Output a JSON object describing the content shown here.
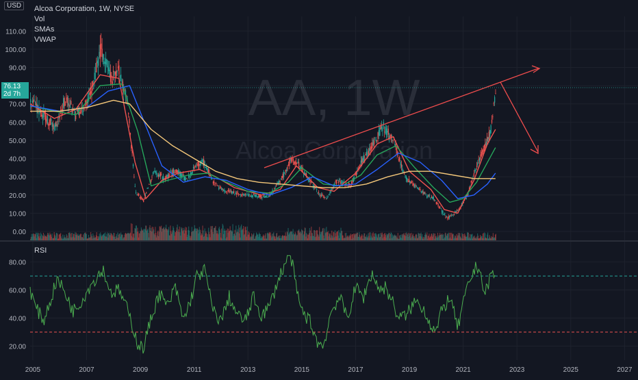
{
  "legend": {
    "title": "Alcoa Corporation, 1W, NYSE",
    "items": [
      "Vol",
      "SMAs",
      "VWAP"
    ]
  },
  "rsi_label": "RSI",
  "currency": "USD",
  "last_price": "76.13",
  "countdown": "2d 7h",
  "watermark": {
    "symbol": "AA, 1W",
    "name": "Alcoa Corporation"
  },
  "colors": {
    "background": "#131722",
    "up": "#26a69a",
    "down": "#ef5350",
    "rsi_line": "#4caf50",
    "sma_fast": "#ef5350",
    "sma_mid": "#26a65b",
    "sma_slow": "#2962ff",
    "vwap": "#f5c87a",
    "trendline": "#f04d4d"
  },
  "chart_data": [
    {
      "type": "line",
      "title": "Alcoa Corporation, 1W, NYSE",
      "x_labels": [
        "2005",
        "2007",
        "2009",
        "2011",
        "2013",
        "2015",
        "2017",
        "2019",
        "2021",
        "2023",
        "2025",
        "2027"
      ],
      "xlim": [
        2004.9,
        2027.5
      ],
      "ylim": [
        -3,
        118
      ],
      "y_ticks": [
        0.0,
        10.0,
        20.0,
        30.0,
        40.0,
        50.0,
        60.0,
        70.0,
        80.0,
        90.0,
        100.0,
        110.0
      ],
      "y_tick_labels": [
        "0.00",
        "10.00",
        "20.00",
        "30.00",
        "40.00",
        "50.00",
        "60.00",
        "70.00",
        "80.00",
        "90.00",
        "100.00",
        "110.00"
      ],
      "series": [
        {
          "name": "Price",
          "x": [
            2004.9,
            2005.3,
            2005.8,
            2006.2,
            2006.6,
            2006.9,
            2007.2,
            2007.5,
            2007.9,
            2008.2,
            2008.5,
            2008.8,
            2009.1,
            2009.5,
            2009.9,
            2010.3,
            2010.7,
            2011.0,
            2011.3,
            2011.7,
            2012.0,
            2012.5,
            2013.0,
            2013.5,
            2013.8,
            2014.2,
            2014.6,
            2014.9,
            2015.2,
            2015.6,
            2015.9,
            2016.3,
            2016.8,
            2017.2,
            2017.6,
            2018.0,
            2018.4,
            2018.8,
            2019.2,
            2019.6,
            2019.9,
            2020.2,
            2020.4,
            2020.8,
            2021.1,
            2021.4,
            2021.8,
            2022.0,
            2022.2
          ],
          "y": [
            72,
            65,
            57,
            73,
            64,
            68,
            78,
            100,
            83,
            88,
            72,
            22,
            17,
            33,
            29,
            34,
            28,
            35,
            39,
            27,
            23,
            21,
            20,
            19,
            20,
            28,
            40,
            36,
            30,
            21,
            18,
            28,
            25,
            38,
            47,
            58,
            50,
            30,
            25,
            20,
            18,
            11,
            7,
            12,
            18,
            32,
            47,
            55,
            76
          ]
        },
        {
          "name": "SMA fast",
          "x": [
            2004.9,
            2005.8,
            2006.6,
            2007.5,
            2008.2,
            2008.8,
            2009.2,
            2009.8,
            2010.4,
            2011.2,
            2011.8,
            2012.5,
            2013.5,
            2014.2,
            2014.8,
            2015.6,
            2016.2,
            2017.0,
            2017.8,
            2018.4,
            2019.0,
            2019.8,
            2020.3,
            2020.8,
            2021.4,
            2021.9,
            2022.2
          ],
          "y": [
            70,
            62,
            67,
            86,
            84,
            38,
            18,
            28,
            32,
            34,
            30,
            24,
            20,
            23,
            36,
            24,
            22,
            32,
            48,
            52,
            33,
            23,
            12,
            10,
            28,
            48,
            56
          ]
        },
        {
          "name": "SMA mid",
          "x": [
            2004.9,
            2005.8,
            2006.6,
            2007.5,
            2008.3,
            2008.9,
            2009.4,
            2010.0,
            2010.8,
            2011.5,
            2012.2,
            2013.0,
            2013.8,
            2014.5,
            2015.0,
            2015.8,
            2016.5,
            2017.2,
            2017.8,
            2018.5,
            2019.2,
            2019.9,
            2020.5,
            2021.0,
            2021.5,
            2022.2
          ],
          "y": [
            69,
            66,
            64,
            80,
            81,
            55,
            25,
            28,
            31,
            32,
            27,
            22,
            21,
            27,
            35,
            26,
            25,
            31,
            42,
            47,
            35,
            24,
            16,
            18,
            27,
            46
          ]
        },
        {
          "name": "SMA slow",
          "x": [
            2004.9,
            2006.0,
            2007.0,
            2007.8,
            2008.6,
            2009.2,
            2009.8,
            2010.6,
            2011.4,
            2012.2,
            2013.0,
            2013.8,
            2014.6,
            2015.4,
            2016.2,
            2017.0,
            2017.8,
            2018.6,
            2019.4,
            2020.2,
            2020.8,
            2021.4,
            2021.9,
            2022.2
          ],
          "y": [
            69,
            66,
            68,
            77,
            80,
            58,
            36,
            27,
            30,
            28,
            23,
            20,
            24,
            30,
            25,
            26,
            34,
            43,
            38,
            28,
            18,
            20,
            26,
            32
          ]
        },
        {
          "name": "VWAP",
          "x": [
            2004.9,
            2006.0,
            2007.0,
            2008.0,
            2008.6,
            2009.4,
            2010.2,
            2011.0,
            2011.8,
            2012.6,
            2013.4,
            2014.2,
            2015.0,
            2015.8,
            2016.6,
            2017.4,
            2018.2,
            2019.0,
            2019.8,
            2020.6,
            2021.4,
            2022.2
          ],
          "y": [
            66,
            66,
            68,
            72,
            70,
            56,
            47,
            40,
            33,
            29,
            27,
            26,
            25,
            24,
            24,
            26,
            30,
            33,
            33,
            31,
            29,
            29
          ]
        }
      ]
    },
    {
      "type": "bar",
      "title": "Vol",
      "x_range": [
        2004.9,
        2022.2
      ],
      "note": "volume histogram along bottom of price pane"
    },
    {
      "type": "line",
      "title": "RSI",
      "xlim": [
        2004.9,
        2027.5
      ],
      "ylim": [
        10,
        92
      ],
      "y_ticks": [
        20,
        40,
        60,
        80
      ],
      "y_tick_labels": [
        "20.00",
        "40.00",
        "60.00",
        "80.00"
      ],
      "levels": [
        70,
        30
      ],
      "series": [
        {
          "name": "RSI",
          "x": [
            2004.9,
            2005.1,
            2005.4,
            2005.7,
            2005.9,
            2006.2,
            2006.5,
            2006.8,
            2007.1,
            2007.4,
            2007.6,
            2007.9,
            2008.2,
            2008.4,
            2008.7,
            2008.9,
            2009.1,
            2009.4,
            2009.7,
            2010.0,
            2010.3,
            2010.6,
            2010.9,
            2011.1,
            2011.4,
            2011.7,
            2012.0,
            2012.3,
            2012.6,
            2012.9,
            2013.2,
            2013.5,
            2013.8,
            2014.1,
            2014.4,
            2014.6,
            2014.8,
            2015.0,
            2015.3,
            2015.6,
            2015.8,
            2016.1,
            2016.4,
            2016.7,
            2017.0,
            2017.3,
            2017.6,
            2017.9,
            2018.1,
            2018.3,
            2018.6,
            2018.9,
            2019.2,
            2019.5,
            2019.8,
            2020.0,
            2020.2,
            2020.5,
            2020.8,
            2021.0,
            2021.2,
            2021.4,
            2021.6,
            2021.8,
            2022.0,
            2022.2
          ],
          "y": [
            60,
            48,
            38,
            55,
            68,
            58,
            45,
            52,
            62,
            70,
            75,
            58,
            60,
            52,
            35,
            22,
            18,
            40,
            58,
            48,
            62,
            38,
            55,
            70,
            74,
            45,
            38,
            55,
            42,
            38,
            55,
            42,
            48,
            66,
            80,
            84,
            60,
            45,
            38,
            22,
            20,
            45,
            55,
            40,
            62,
            55,
            72,
            60,
            62,
            55,
            40,
            42,
            52,
            48,
            35,
            30,
            45,
            55,
            33,
            50,
            64,
            74,
            78,
            55,
            70,
            72
          ]
        }
      ]
    }
  ]
}
